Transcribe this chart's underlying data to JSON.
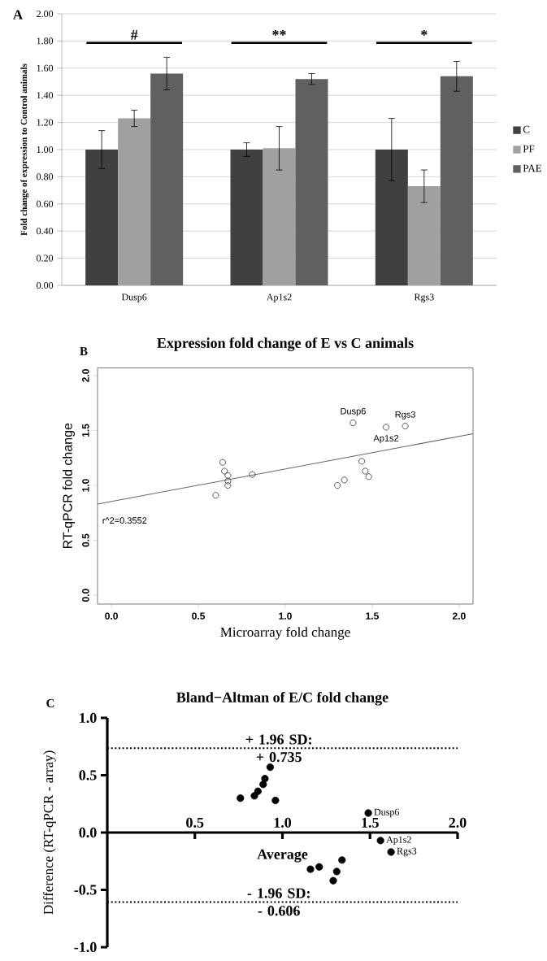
{
  "chart_data": [
    {
      "type": "bar",
      "ylabel": "Fold change of expression to Control animals",
      "categories": [
        "Dusp6",
        "Ap1s2",
        "Rgs3"
      ],
      "series": [
        {
          "name": "C",
          "color": "#404040",
          "values": [
            1.0,
            1.0,
            1.0
          ],
          "errors": [
            0.14,
            0.05,
            0.23
          ]
        },
        {
          "name": "PF",
          "color": "#a0a0a0",
          "values": [
            1.23,
            1.01,
            0.73
          ],
          "errors": [
            0.06,
            0.16,
            0.12
          ]
        },
        {
          "name": "PAE",
          "color": "#606060",
          "values": [
            1.56,
            1.52,
            1.54
          ],
          "errors": [
            0.12,
            0.04,
            0.11
          ]
        }
      ],
      "ylim": [
        0,
        2
      ],
      "yticks": [
        {
          "value": 0,
          "label": "0.00"
        },
        {
          "value": 0.2,
          "label": "0.20"
        },
        {
          "value": 0.4,
          "label": "0.40"
        },
        {
          "value": 0.6,
          "label": "0.60"
        },
        {
          "value": 0.8,
          "label": "0.80"
        },
        {
          "value": 1.0,
          "label": "1.00"
        },
        {
          "value": 1.2,
          "label": "1.20"
        },
        {
          "value": 1.4,
          "label": "1.40"
        },
        {
          "value": 1.6,
          "label": "1.60"
        },
        {
          "value": 1.8,
          "label": "1.80"
        },
        {
          "value": 2.0,
          "label": "2.00"
        }
      ],
      "grid": "y",
      "legend": "right",
      "annotations": [
        "A",
        "#",
        "**",
        "*"
      ]
    },
    {
      "type": "scatter",
      "title": "Expression fold change of E vs C animals",
      "xlabel": "Microarray fold change",
      "ylabel": "RT-qPCR fold change",
      "marker": "circle",
      "series": [
        {
          "color": "#333333",
          "x": [
            0.6,
            0.64,
            0.65,
            0.67,
            0.67,
            0.67,
            0.81,
            1.3,
            1.34,
            1.39,
            1.44,
            1.46,
            1.48,
            1.58,
            1.69
          ],
          "values": [
            0.91,
            1.21,
            1.13,
            1.09,
            1.04,
            1.0,
            1.1,
            1.0,
            1.05,
            1.57,
            1.22,
            1.13,
            1.08,
            1.53,
            1.54
          ]
        },
        {
          "type": "line",
          "marker": "none",
          "color": "#666666",
          "x": [
            -0.08,
            2.08
          ],
          "values": [
            0.83,
            1.47
          ]
        }
      ],
      "xlim": [
        -0.08,
        2.08
      ],
      "ylim": [
        -0.08,
        2.07
      ],
      "xticks": [
        {
          "value": 0,
          "label": "0.0"
        },
        {
          "value": 0.5,
          "label": "0.5"
        },
        {
          "value": 1.0,
          "label": "1.0"
        },
        {
          "value": 1.5,
          "label": "1.5"
        },
        {
          "value": 2.0,
          "label": "2.0"
        }
      ],
      "yticks": [
        {
          "value": 0,
          "label": "0.0"
        },
        {
          "value": 0.5,
          "label": "0.5"
        },
        {
          "value": 1.0,
          "label": "1.0"
        },
        {
          "value": 1.5,
          "label": "1.5"
        },
        {
          "value": 2.0,
          "label": "2.0"
        }
      ],
      "annotations": [
        "B",
        "r^2=0.3552",
        {
          "text": "Dusp6",
          "x": 1.39,
          "y": 1.57
        },
        {
          "text": "Rgs3",
          "x": 1.69,
          "y": 1.54
        },
        {
          "text": "Ap1s2",
          "x": 1.58,
          "y": 1.53
        }
      ]
    },
    {
      "type": "scatter",
      "title": "Bland−Altman of E/C fold change",
      "xlabel": "Average",
      "ylabel": "Difference (RT-qPCR - array)",
      "marker": "circle",
      "series": [
        {
          "color": "#000000",
          "x": [
            0.76,
            0.84,
            0.86,
            0.89,
            0.9,
            0.93,
            0.96,
            1.49,
            1.56,
            1.62,
            1.16,
            1.21,
            1.34,
            1.31,
            1.29
          ],
          "values": [
            0.3,
            0.32,
            0.36,
            0.42,
            0.47,
            0.57,
            0.28,
            0.17,
            -0.07,
            -0.17,
            -0.32,
            -0.3,
            -0.24,
            -0.34,
            -0.42
          ]
        }
      ],
      "xlim": [
        0,
        2
      ],
      "ylim": [
        -1,
        1
      ],
      "xticks": [
        {
          "value": 0.5,
          "label": "0.5"
        },
        {
          "value": 1.0,
          "label": "1.0"
        },
        {
          "value": 1.5,
          "label": "1.5"
        },
        {
          "value": 2.0,
          "label": "2.0"
        }
      ],
      "yticks": [
        {
          "value": -1,
          "label": "-1.0"
        },
        {
          "value": -0.5,
          "label": "-0.5"
        },
        {
          "value": 0,
          "label": "0.0"
        },
        {
          "value": 0.5,
          "label": "0.5"
        },
        {
          "value": 1.0,
          "label": "1.0"
        }
      ],
      "ref_lines": [
        {
          "axis": "y",
          "value": 0.735,
          "label": "+ 1.96 SD: + 0.735",
          "line_style": "dotted"
        },
        {
          "axis": "y",
          "value": -0.606,
          "label": "- 1.96 SD: - 0.606",
          "line_style": "dotted"
        }
      ],
      "annotations": [
        "C",
        {
          "text": "Dusp6",
          "x": 1.49,
          "y": 0.17
        },
        {
          "text": "Ap1s2",
          "x": 1.56,
          "y": -0.07
        },
        {
          "text": "Rgs3",
          "x": 1.62,
          "y": -0.17
        }
      ]
    }
  ]
}
